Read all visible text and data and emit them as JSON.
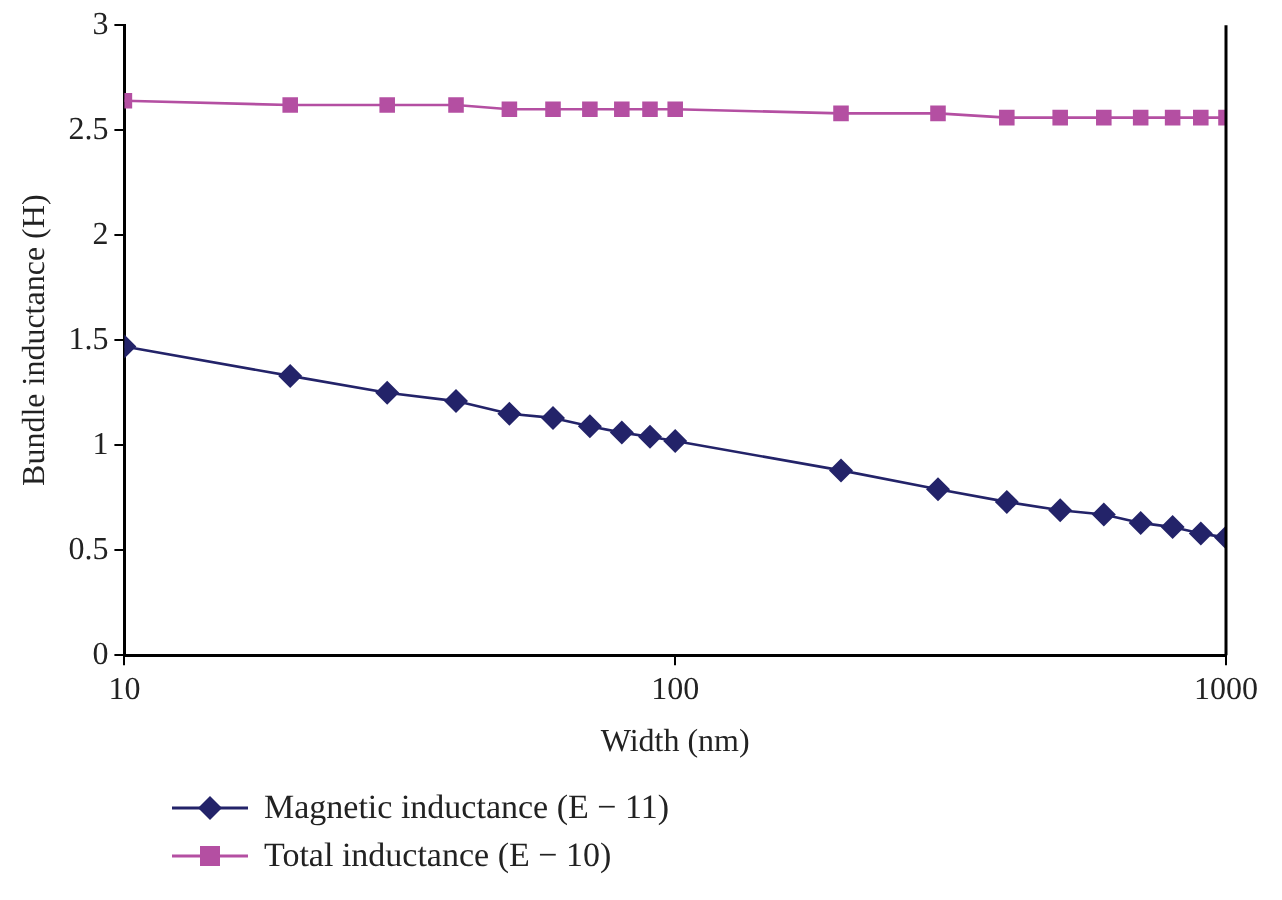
{
  "chart_data": {
    "type": "line",
    "xlabel": "Width (nm)",
    "ylabel": "Bundle inductance (H)",
    "x": [
      10,
      20,
      30,
      40,
      50,
      60,
      70,
      80,
      90,
      100,
      200,
      300,
      400,
      500,
      600,
      700,
      800,
      900,
      1000
    ],
    "series": [
      {
        "name": "Magnetic inductance (E − 11)",
        "color": "#232369",
        "marker": "diamond",
        "values": [
          1.47,
          1.33,
          1.25,
          1.21,
          1.15,
          1.13,
          1.09,
          1.06,
          1.04,
          1.02,
          0.88,
          0.79,
          0.73,
          0.69,
          0.67,
          0.63,
          0.61,
          0.58,
          0.56
        ]
      },
      {
        "name": "Total inductance (E − 10)",
        "color": "#b44fa2",
        "marker": "square",
        "values": [
          2.64,
          2.62,
          2.62,
          2.62,
          2.6,
          2.6,
          2.6,
          2.6,
          2.6,
          2.6,
          2.58,
          2.58,
          2.56,
          2.56,
          2.56,
          2.56,
          2.56,
          2.56,
          2.56
        ]
      }
    ],
    "log": "x",
    "xlim": [
      10,
      1000
    ],
    "xticks": [
      10,
      100,
      1000
    ],
    "ylim": [
      0,
      3
    ],
    "yticks": [
      0,
      0.5,
      1,
      1.5,
      2,
      2.5,
      3
    ],
    "grid": false,
    "legend": "bottom",
    "line_style": "solid"
  }
}
